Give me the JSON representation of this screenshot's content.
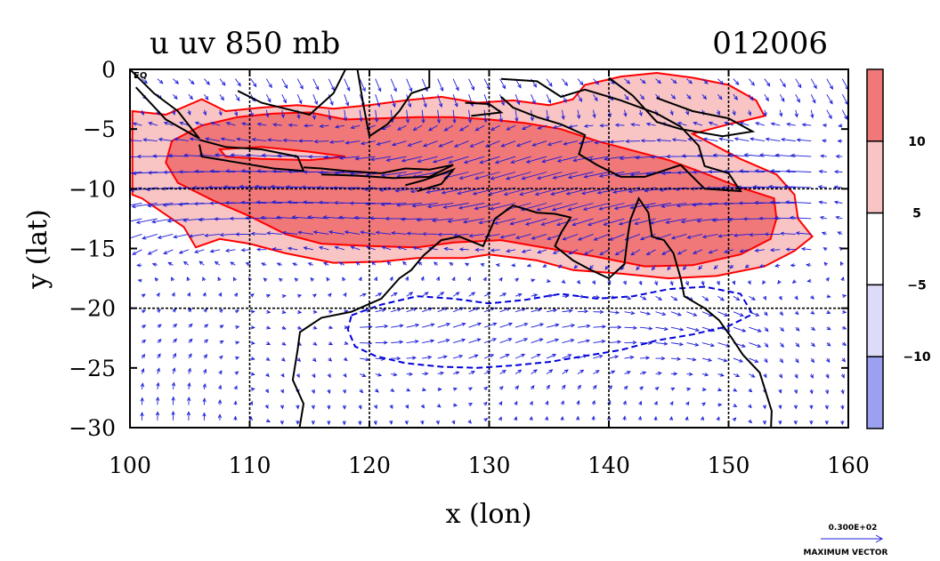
{
  "chart_data": {
    "type": "heatmap",
    "title_left": "u uv 850 mb",
    "title_right": "012006",
    "xlabel": "x (lon)",
    "ylabel": "y (lat)",
    "xlim": [
      100,
      160
    ],
    "ylim": [
      -30,
      0
    ],
    "xticks": [
      {
        "value": 100,
        "label": "100"
      },
      {
        "value": 110,
        "label": "110"
      },
      {
        "value": 120,
        "label": "120"
      },
      {
        "value": 130,
        "label": "130"
      },
      {
        "value": 140,
        "label": "140"
      },
      {
        "value": 150,
        "label": "150"
      },
      {
        "value": 160,
        "label": "160"
      }
    ],
    "yticks": [
      {
        "value": 0,
        "label": "0"
      },
      {
        "value": -5,
        "label": "−5"
      },
      {
        "value": -10,
        "label": "−10"
      },
      {
        "value": -15,
        "label": "−15"
      },
      {
        "value": -20,
        "label": "−20"
      },
      {
        "value": -25,
        "label": "−25"
      },
      {
        "value": -30,
        "label": "−30"
      }
    ],
    "equator_label": "EQ",
    "grid": true,
    "grid_x": [
      110,
      120,
      130,
      140,
      150
    ],
    "grid_y": [
      -10,
      -20
    ],
    "colorbar": {
      "placement": "right",
      "labels": [
        {
          "value": 10,
          "label": "10"
        },
        {
          "value": 5,
          "label": "5"
        },
        {
          "value": -5,
          "label": "−5"
        },
        {
          "value": -10,
          "label": "−10"
        }
      ],
      "bins": [
        {
          "range": [
            10,
            15
          ],
          "color": "#f07878"
        },
        {
          "range": [
            5,
            10
          ],
          "color": "#f8c4c4"
        },
        {
          "range": [
            -5,
            5
          ],
          "color": "#ffffff"
        },
        {
          "range": [
            -10,
            -5
          ],
          "color": "#dcdcf8"
        },
        {
          "range": [
            -15,
            -10
          ],
          "color": "#9ca0f0"
        }
      ]
    },
    "contour_colors": {
      "positive": "#ff0000",
      "negative": "#0000dd",
      "coast": "#000000",
      "vector": "#1c1cd8"
    },
    "regions": [
      {
        "level": 5,
        "polygon": [
          [
            100.2,
            -3.5
          ],
          [
            103,
            -3.8
          ],
          [
            106,
            -2.5
          ],
          [
            108,
            -3.5
          ],
          [
            111,
            -3.2
          ],
          [
            114,
            -3.0
          ],
          [
            117,
            -3.3
          ],
          [
            120,
            -3.0
          ],
          [
            123,
            -2.6
          ],
          [
            126,
            -2.3
          ],
          [
            129,
            -2.8
          ],
          [
            132,
            -2.6
          ],
          [
            135,
            -3.0
          ],
          [
            137,
            -2.5
          ],
          [
            138,
            -1.3
          ],
          [
            141,
            -0.6
          ],
          [
            144,
            -0.3
          ],
          [
            147,
            -0.7
          ],
          [
            150,
            -1.3
          ],
          [
            152.3,
            -2.6
          ],
          [
            153,
            -3.9
          ],
          [
            150,
            -4.6
          ],
          [
            147,
            -5.4
          ],
          [
            151,
            -7.5
          ],
          [
            154,
            -8.8
          ],
          [
            155.5,
            -10.5
          ],
          [
            155.8,
            -12.5
          ],
          [
            157,
            -14
          ],
          [
            155.5,
            -15.2
          ],
          [
            153,
            -16.5
          ],
          [
            149,
            -17.3
          ],
          [
            145,
            -17.5
          ],
          [
            141,
            -17.1
          ],
          [
            137,
            -16.8
          ],
          [
            134,
            -16.0
          ],
          [
            130,
            -15.5
          ],
          [
            128,
            -15.8
          ],
          [
            124,
            -15.8
          ],
          [
            121,
            -16.1
          ],
          [
            117,
            -16.2
          ],
          [
            113,
            -15.4
          ],
          [
            110,
            -14.6
          ],
          [
            107.5,
            -14.2
          ],
          [
            105.5,
            -14.9
          ],
          [
            104.5,
            -13.2
          ],
          [
            101,
            -10.8
          ],
          [
            100.2,
            -10.5
          ]
        ]
      },
      {
        "level": 10,
        "polygon": [
          [
            103.5,
            -6.0
          ],
          [
            106,
            -4.7
          ],
          [
            109,
            -4.0
          ],
          [
            112,
            -3.7
          ],
          [
            115,
            -3.6
          ],
          [
            118,
            -4.2
          ],
          [
            121,
            -4.1
          ],
          [
            124,
            -4.0
          ],
          [
            127,
            -4.0
          ],
          [
            130,
            -4.2
          ],
          [
            133,
            -4.5
          ],
          [
            136,
            -5.0
          ],
          [
            139,
            -6.0
          ],
          [
            142,
            -6.8
          ],
          [
            145,
            -7.6
          ],
          [
            148,
            -8.7
          ],
          [
            151,
            -9.9
          ],
          [
            153.8,
            -10.8
          ],
          [
            154,
            -12.5
          ],
          [
            153.5,
            -14.2
          ],
          [
            151,
            -15.5
          ],
          [
            147,
            -16.4
          ],
          [
            143,
            -16.5
          ],
          [
            139,
            -15.7
          ],
          [
            135,
            -15.0
          ],
          [
            131,
            -14.3
          ],
          [
            127,
            -14.5
          ],
          [
            124,
            -14.9
          ],
          [
            120,
            -14.8
          ],
          [
            116,
            -14.6
          ],
          [
            113,
            -13.8
          ],
          [
            110,
            -12.3
          ],
          [
            107,
            -11.0
          ],
          [
            104,
            -9.5
          ],
          [
            103,
            -7.8
          ]
        ]
      },
      {
        "level": 5,
        "polygon": [
          [
            107.5,
            -6.7
          ],
          [
            111,
            -6.5
          ],
          [
            115,
            -6.9
          ],
          [
            118,
            -7.3
          ],
          [
            115,
            -7.6
          ],
          [
            111,
            -7.5
          ],
          [
            108,
            -7.3
          ]
        ]
      },
      {
        "level": -5,
        "polygon": [
          [
            118.5,
            -20.6
          ],
          [
            121,
            -19.7
          ],
          [
            124,
            -19.0
          ],
          [
            127,
            -19.2
          ],
          [
            130,
            -19.6
          ],
          [
            133,
            -19.3
          ],
          [
            136,
            -18.8
          ],
          [
            139,
            -19.2
          ],
          [
            142,
            -19.0
          ],
          [
            145,
            -18.4
          ],
          [
            148,
            -18.2
          ],
          [
            151,
            -18.8
          ],
          [
            152,
            -20.5
          ],
          [
            150,
            -21.5
          ],
          [
            147,
            -22.2
          ],
          [
            144,
            -22.7
          ],
          [
            141,
            -23.5
          ],
          [
            138,
            -24.0
          ],
          [
            135,
            -24.5
          ],
          [
            132,
            -24.8
          ],
          [
            129,
            -25.0
          ],
          [
            126,
            -24.9
          ],
          [
            123,
            -24.6
          ],
          [
            120.5,
            -24.0
          ],
          [
            118.8,
            -23.2
          ],
          [
            118.2,
            -21.8
          ]
        ]
      }
    ],
    "coastlines": [
      [
        [
          100,
          0
        ],
        [
          102,
          -2.0
        ],
        [
          104,
          -3.5
        ],
        [
          105.8,
          -5.8
        ],
        [
          103,
          -4.2
        ],
        [
          100.5,
          -1.5
        ]
      ],
      [
        [
          105.8,
          -5.9
        ],
        [
          108,
          -6.5
        ],
        [
          111,
          -6.7
        ],
        [
          114,
          -7.3
        ],
        [
          114.5,
          -8.5
        ],
        [
          112,
          -8.3
        ],
        [
          109,
          -7.8
        ],
        [
          106,
          -7.3
        ],
        [
          105.8,
          -6.3
        ]
      ],
      [
        [
          114.5,
          -8.2
        ],
        [
          116,
          -8.3
        ],
        [
          118,
          -8.5
        ],
        [
          121,
          -8.7
        ],
        [
          123,
          -8.3
        ],
        [
          125,
          -8.4
        ],
        [
          127,
          -8.0
        ],
        [
          125,
          -9.0
        ],
        [
          122,
          -9.1
        ],
        [
          119,
          -8.9
        ],
        [
          116,
          -8.8
        ]
      ],
      [
        [
          123,
          -9.7
        ],
        [
          124.5,
          -9.3
        ],
        [
          127,
          -8.4
        ],
        [
          126,
          -9.6
        ],
        [
          124,
          -10.2
        ]
      ],
      [
        [
          109,
          -1.8
        ],
        [
          111,
          -2.8
        ],
        [
          113,
          -3.3
        ],
        [
          115,
          -3.8
        ],
        [
          117,
          -2.0
        ],
        [
          118,
          0
        ]
      ],
      [
        [
          119,
          0
        ],
        [
          119.5,
          -3.0
        ],
        [
          120,
          -5.6
        ],
        [
          121.5,
          -4.6
        ],
        [
          122.5,
          -3.5
        ],
        [
          123.5,
          -2.0
        ],
        [
          125,
          -1.5
        ],
        [
          125,
          0
        ]
      ],
      [
        [
          128,
          -2.8
        ],
        [
          130,
          -2.9
        ],
        [
          131,
          -3.6
        ],
        [
          128.5,
          -3.9
        ]
      ],
      [
        [
          131,
          -0.8
        ],
        [
          134,
          -1.0
        ],
        [
          136,
          -2.3
        ],
        [
          138,
          -1.7
        ],
        [
          141,
          -2.6
        ],
        [
          144,
          -3.7
        ],
        [
          146,
          -4.8
        ],
        [
          147.5,
          -6.4
        ],
        [
          148,
          -8.1
        ],
        [
          150,
          -8.7
        ],
        [
          151,
          -10.2
        ],
        [
          148,
          -10.0
        ],
        [
          146,
          -8.0
        ],
        [
          143,
          -9.0
        ],
        [
          141,
          -9.0
        ],
        [
          139,
          -8.0
        ],
        [
          137.5,
          -7.1
        ],
        [
          138,
          -5.5
        ],
        [
          136,
          -4.6
        ],
        [
          134,
          -4.0
        ],
        [
          132,
          -3.2
        ],
        [
          131,
          -2.3
        ]
      ],
      [
        [
          140,
          -0.7
        ],
        [
          142,
          -2.2
        ],
        [
          144,
          -4.4
        ],
        [
          146,
          -5.0
        ],
        [
          149.5,
          -5.6
        ],
        [
          152,
          -5.2
        ],
        [
          150,
          -4.1
        ],
        [
          147,
          -3.5
        ],
        [
          144,
          -2.4
        ]
      ],
      [
        [
          114,
          -31
        ],
        [
          114.5,
          -28
        ],
        [
          113.6,
          -26
        ],
        [
          114,
          -23.5
        ],
        [
          114.2,
          -22
        ],
        [
          116,
          -20.8
        ],
        [
          118.5,
          -20.3
        ],
        [
          121,
          -19.2
        ],
        [
          122.5,
          -17.5
        ],
        [
          123.5,
          -16.8
        ],
        [
          124.5,
          -15.6
        ],
        [
          126,
          -14.3
        ],
        [
          127.5,
          -14.0
        ],
        [
          129.5,
          -14.8
        ],
        [
          130.5,
          -12.5
        ],
        [
          132,
          -11.4
        ],
        [
          134,
          -12.0
        ],
        [
          135.5,
          -12.1
        ],
        [
          136.8,
          -12.4
        ],
        [
          136,
          -13.7
        ],
        [
          135.5,
          -14.8
        ],
        [
          137,
          -16.0
        ],
        [
          138.5,
          -16.8
        ],
        [
          140,
          -17.5
        ],
        [
          141.3,
          -16.3
        ],
        [
          141.6,
          -13.8
        ],
        [
          141.8,
          -12.6
        ],
        [
          142.5,
          -10.8
        ],
        [
          143.3,
          -12.0
        ],
        [
          143.6,
          -14.0
        ],
        [
          144.6,
          -14.3
        ],
        [
          145.4,
          -15.4
        ],
        [
          146,
          -17.5
        ],
        [
          146.3,
          -19.0
        ],
        [
          148,
          -20.0
        ],
        [
          149.2,
          -21.0
        ],
        [
          150.2,
          -22.4
        ],
        [
          151.2,
          -23.9
        ],
        [
          152.6,
          -25.4
        ],
        [
          153.1,
          -27.0
        ],
        [
          153.6,
          -28.6
        ],
        [
          153.5,
          -31
        ]
      ]
    ],
    "vector_reference": {
      "value": "0.300E+02",
      "caption": "MAXIMUM VECTOR"
    }
  }
}
